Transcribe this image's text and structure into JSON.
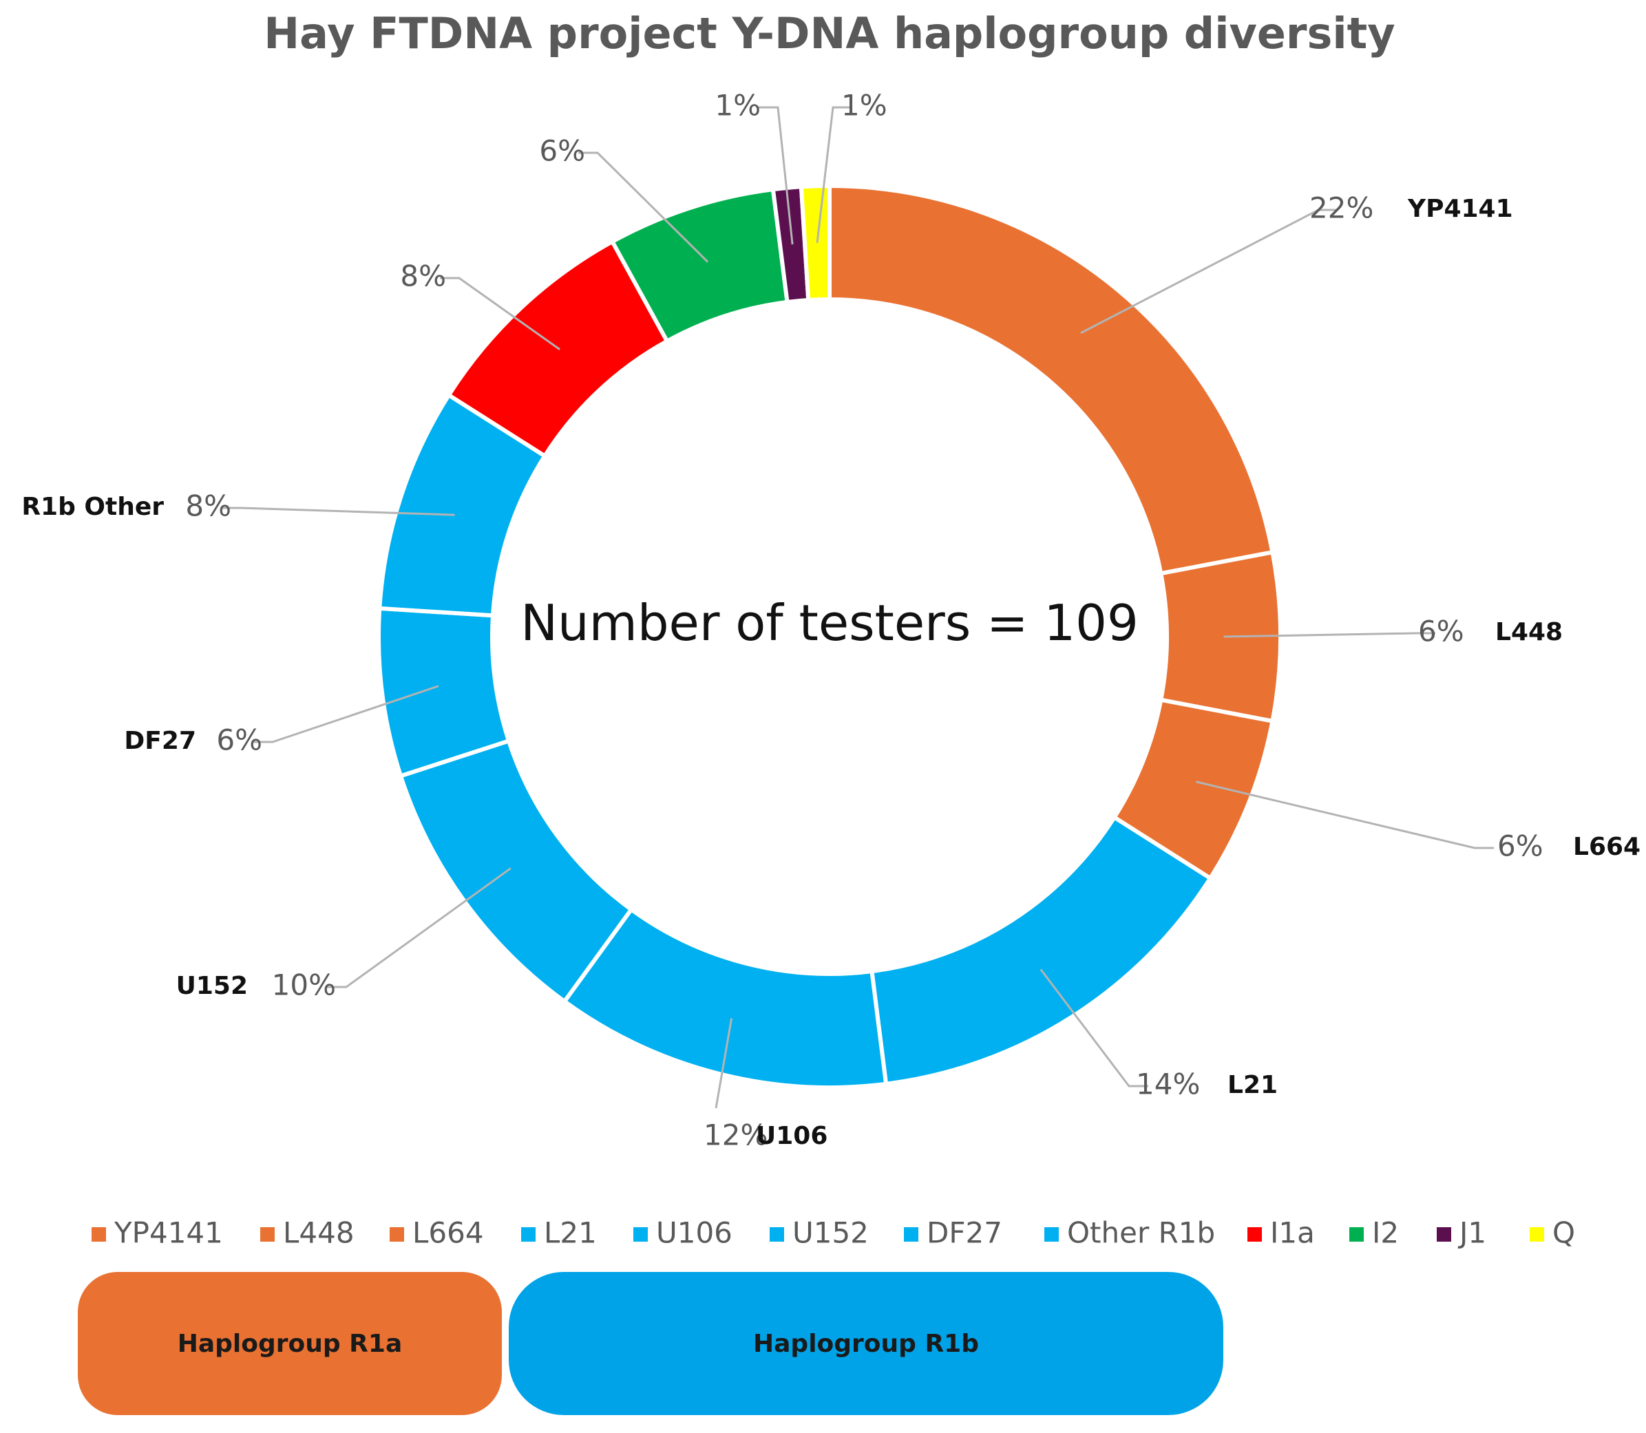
{
  "chart_data": {
    "type": "donut",
    "title": "Hay FTDNA project Y-DNA haplogroup diversity",
    "center_label": "Number of testers = 109",
    "slices": [
      {
        "name": "YP4141",
        "label": "YP4141",
        "percent": 22,
        "percent_label": "22%",
        "color": "#E97132"
      },
      {
        "name": "L448",
        "label": "L448",
        "percent": 6,
        "percent_label": "6%",
        "color": "#E97132"
      },
      {
        "name": "L664",
        "label": "L664",
        "percent": 6,
        "percent_label": "6%",
        "color": "#E97132"
      },
      {
        "name": "L21",
        "label": "L21",
        "percent": 14,
        "percent_label": "14%",
        "color": "#00B0F0"
      },
      {
        "name": "U106",
        "label": "U106",
        "percent": 12,
        "percent_label": "12%",
        "color": "#00B0F0"
      },
      {
        "name": "U152",
        "label": "U152",
        "percent": 10,
        "percent_label": "10%",
        "color": "#00B0F0"
      },
      {
        "name": "DF27",
        "label": "DF27",
        "percent": 6,
        "percent_label": "6%",
        "color": "#00B0F0"
      },
      {
        "name": "Other R1b",
        "label": "R1b Other",
        "percent": 8,
        "percent_label": "8%",
        "color": "#00B0F0"
      },
      {
        "name": "I1a",
        "label": "",
        "percent": 8,
        "percent_label": "8%",
        "color": "#FF0000"
      },
      {
        "name": "I2",
        "label": "",
        "percent": 6,
        "percent_label": "6%",
        "color": "#00B050"
      },
      {
        "name": "J1",
        "label": "",
        "percent": 1,
        "percent_label": "1%",
        "color": "#5B0F4F"
      },
      {
        "name": "Q",
        "label": "",
        "percent": 1,
        "percent_label": "1%",
        "color": "#FFFF00"
      }
    ],
    "legend": [
      "YP4141",
      "L448",
      "L664",
      "L21",
      "U106",
      "U152",
      "DF27",
      "Other R1b",
      "I1a",
      "I2",
      "J1",
      "Q"
    ],
    "legend_position": "bottom"
  },
  "groups": {
    "r1a": {
      "label": "Haplogroup R1a",
      "color": "#E97132"
    },
    "r1b": {
      "label": "Haplogroup R1b",
      "color": "#00A3E8"
    }
  }
}
